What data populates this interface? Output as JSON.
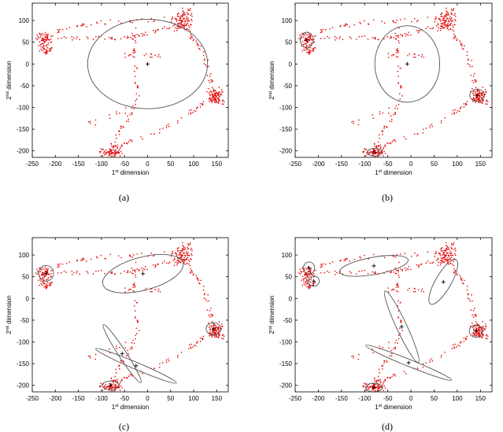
{
  "figure": {
    "panels": [
      "(a)",
      "(b)",
      "(c)",
      "(d)"
    ]
  },
  "chart_data": [
    {
      "type": "scatter",
      "panel_label": "(a)",
      "title": "",
      "xlabel": {
        "base": "1",
        "sup": "st",
        "rest": " dimension"
      },
      "ylabel": {
        "base": "2",
        "sup": "nd",
        "rest": " dimension"
      },
      "xlim": [
        -250,
        175
      ],
      "ylim": [
        -215,
        140
      ],
      "xticks": [
        -250,
        -200,
        -150,
        -100,
        -50,
        0,
        50,
        100,
        150
      ],
      "yticks": [
        -200,
        -150,
        -100,
        -50,
        0,
        50,
        100
      ],
      "point_color": "#e00000",
      "clusters": [
        {
          "center": [
            0,
            0
          ],
          "rx": 130,
          "ry": 103,
          "angle": 0
        }
      ]
    },
    {
      "type": "scatter",
      "panel_label": "(b)",
      "title": "",
      "xlabel": {
        "base": "1",
        "sup": "st",
        "rest": " dimension"
      },
      "ylabel": {
        "base": "2",
        "sup": "nd",
        "rest": " dimension"
      },
      "xlim": [
        -250,
        175
      ],
      "ylim": [
        -215,
        140
      ],
      "xticks": [
        -250,
        -200,
        -150,
        -100,
        -50,
        0,
        50,
        100,
        150
      ],
      "yticks": [
        -200,
        -150,
        -100,
        -50,
        0,
        50,
        100
      ],
      "point_color": "#e00000",
      "clusters": [
        {
          "center": [
            -8,
            0
          ],
          "rx": 70,
          "ry": 88,
          "angle": 0
        },
        {
          "center": [
            -225,
            55
          ],
          "rx": 14,
          "ry": 18,
          "angle": 0
        },
        {
          "center": [
            143,
            -72
          ],
          "rx": 16,
          "ry": 14,
          "angle": 0
        },
        {
          "center": [
            -78,
            -203
          ],
          "rx": 16,
          "ry": 9,
          "angle": 0
        }
      ]
    },
    {
      "type": "scatter",
      "panel_label": "(c)",
      "title": "",
      "xlabel": {
        "base": "1",
        "sup": "st",
        "rest": " dimension"
      },
      "ylabel": {
        "base": "2",
        "sup": "nd",
        "rest": " dimension"
      },
      "xlim": [
        -250,
        175
      ],
      "ylim": [
        -215,
        140
      ],
      "xticks": [
        -250,
        -200,
        -150,
        -100,
        -50,
        0,
        50,
        100,
        150
      ],
      "yticks": [
        -200,
        -150,
        -100,
        -50,
        0,
        50,
        100
      ],
      "point_color": "#e00000",
      "clusters": [
        {
          "center": [
            -10,
            57
          ],
          "rx": 90,
          "ry": 38,
          "angle": 15
        },
        {
          "center": [
            -220,
            58
          ],
          "rx": 16,
          "ry": 18,
          "angle": 0
        },
        {
          "center": [
            -55,
            -127
          ],
          "rx": 75,
          "ry": 9,
          "angle": -57
        },
        {
          "center": [
            -25,
            -155
          ],
          "rx": 95,
          "ry": 8,
          "angle": -23
        },
        {
          "center": [
            143,
            -70
          ],
          "rx": 16,
          "ry": 14,
          "angle": 0
        },
        {
          "center": [
            -80,
            -200
          ],
          "rx": 18,
          "ry": 10,
          "angle": 0
        }
      ]
    },
    {
      "type": "scatter",
      "panel_label": "(d)",
      "title": "",
      "xlabel": {
        "base": "1",
        "sup": "st",
        "rest": " dimension"
      },
      "ylabel": {
        "base": "2",
        "sup": "nd",
        "rest": " dimension"
      },
      "xlim": [
        -250,
        175
      ],
      "ylim": [
        -215,
        140
      ],
      "xticks": [
        -250,
        -200,
        -150,
        -100,
        -50,
        0,
        50,
        100,
        150
      ],
      "yticks": [
        -200,
        -150,
        -100,
        -50,
        0,
        50,
        100
      ],
      "point_color": "#e00000",
      "clusters": [
        {
          "center": [
            -80,
            75
          ],
          "rx": 75,
          "ry": 20,
          "angle": 10
        },
        {
          "center": [
            -220,
            70
          ],
          "rx": 12,
          "ry": 14,
          "angle": 0
        },
        {
          "center": [
            -210,
            40
          ],
          "rx": 12,
          "ry": 12,
          "angle": 0
        },
        {
          "center": [
            70,
            38
          ],
          "rx": 55,
          "ry": 18,
          "angle": 60
        },
        {
          "center": [
            -20,
            -65
          ],
          "rx": 85,
          "ry": 12,
          "angle": -65
        },
        {
          "center": [
            -5,
            -148
          ],
          "rx": 100,
          "ry": 8,
          "angle": -22
        },
        {
          "center": [
            140,
            -75
          ],
          "rx": 14,
          "ry": 14,
          "angle": 0
        },
        {
          "center": [
            -80,
            -205
          ],
          "rx": 18,
          "ry": 10,
          "angle": 0
        }
      ]
    }
  ]
}
